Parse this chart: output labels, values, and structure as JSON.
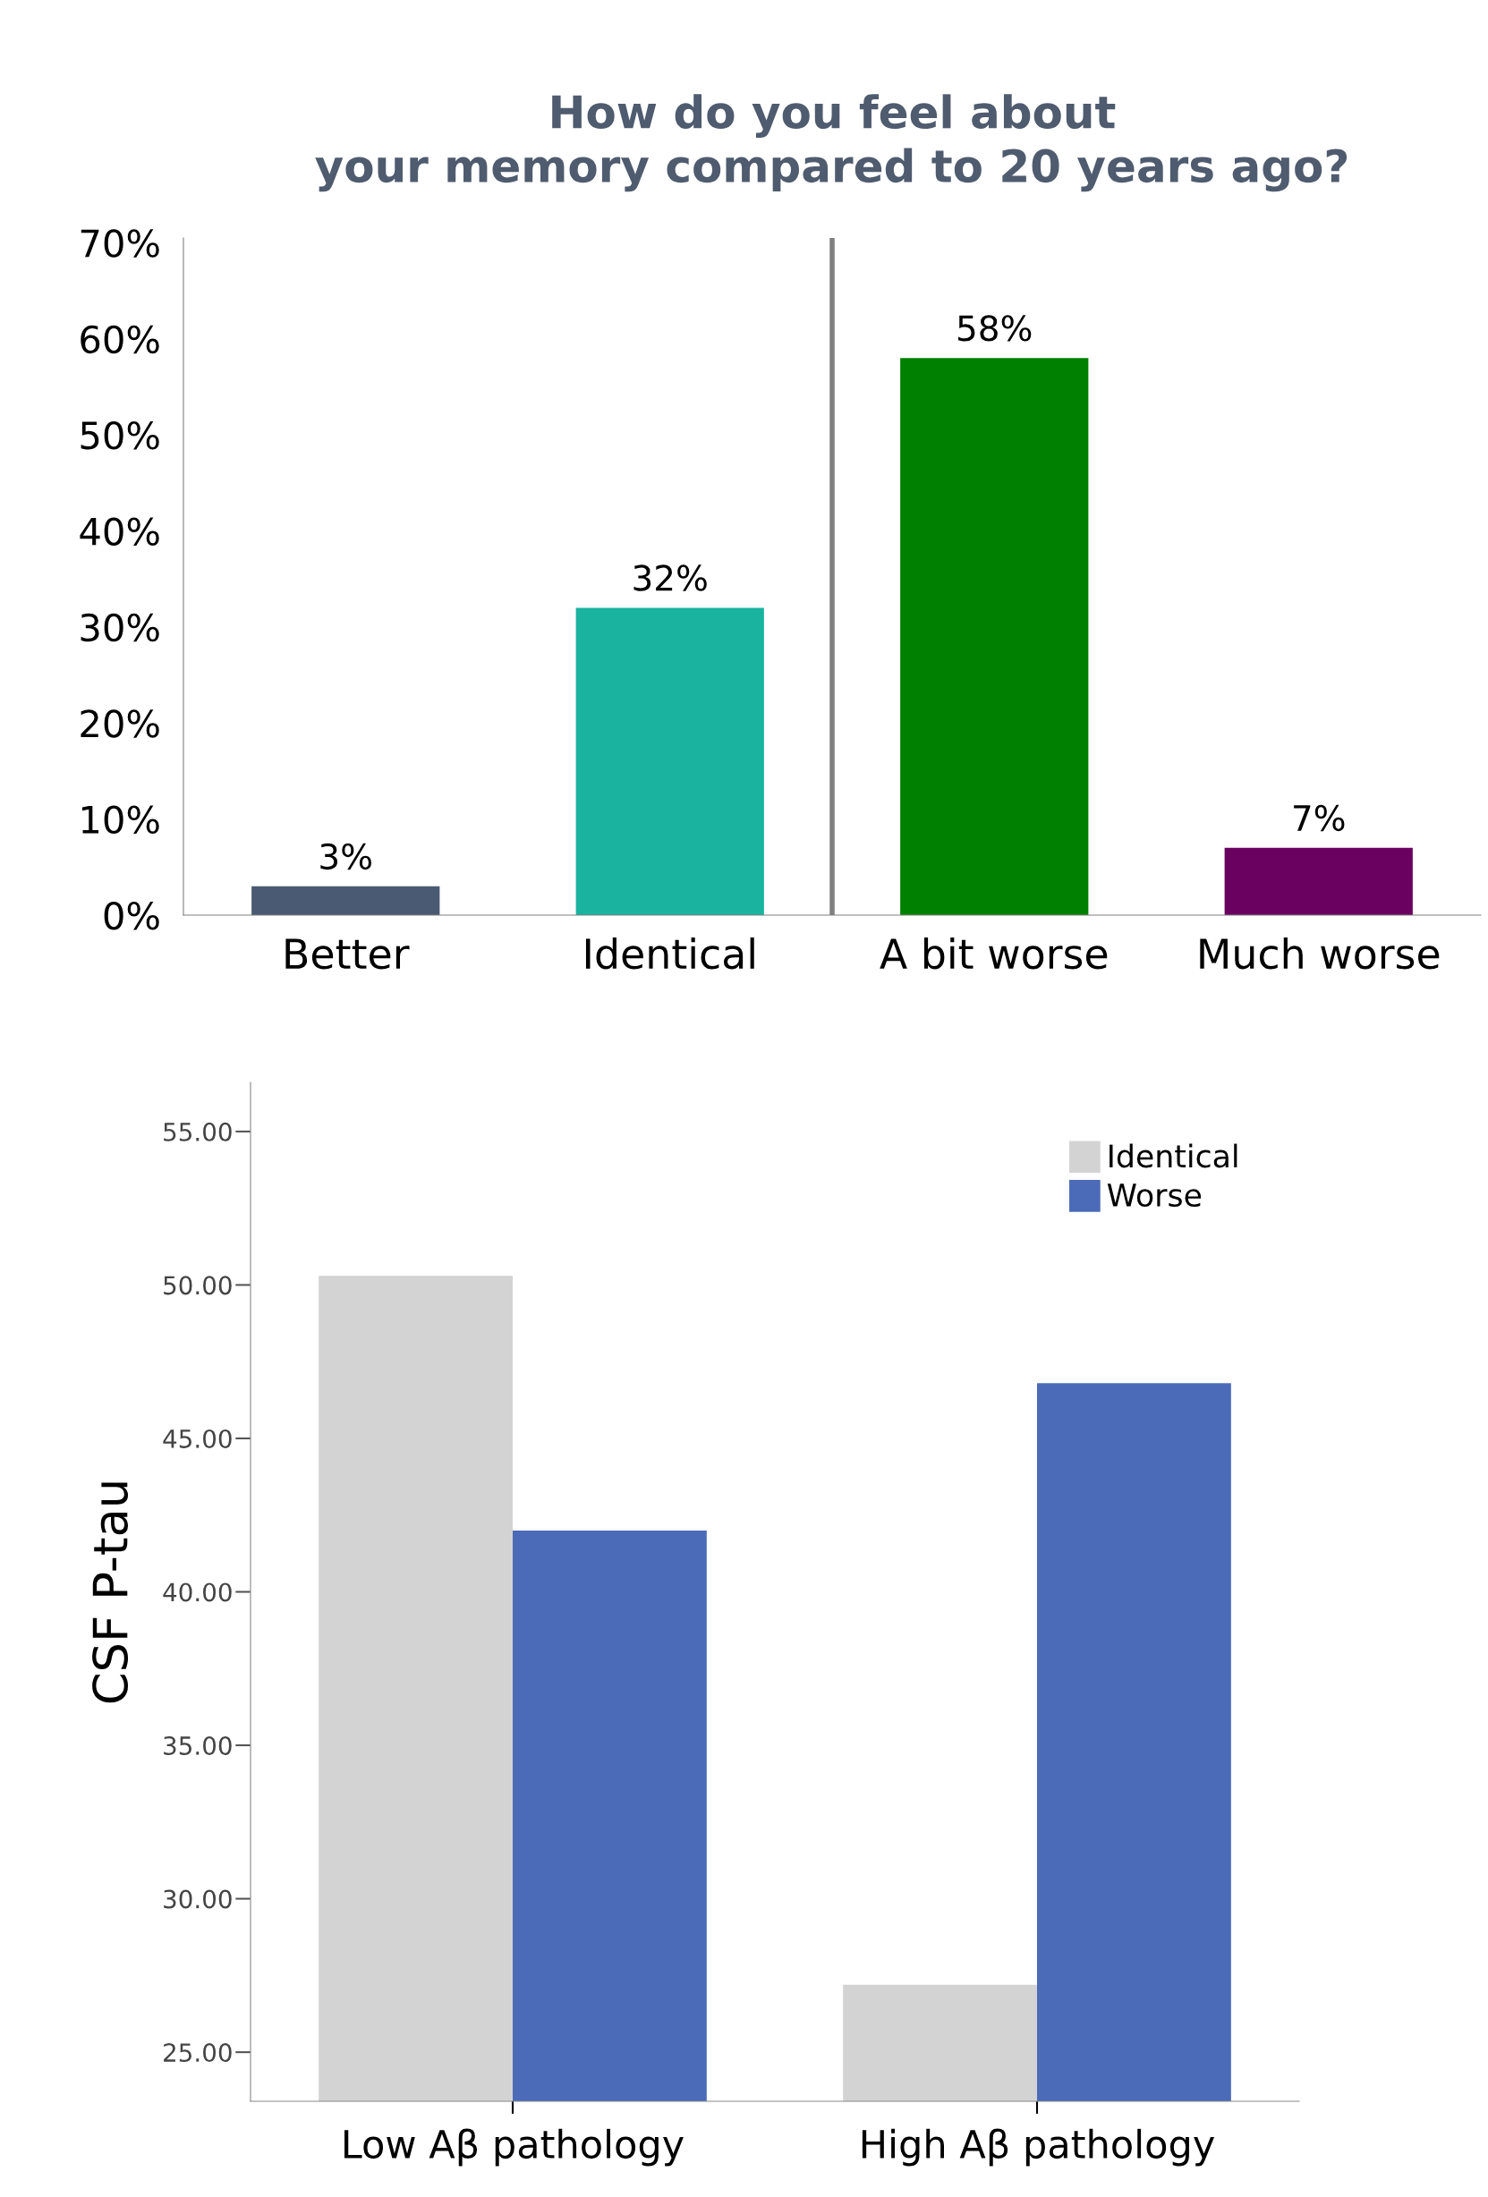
{
  "chart_data": [
    {
      "type": "bar",
      "title": "How do you feel about\nyour memory compared to 20 years ago?",
      "categories": [
        "Better",
        "Identical",
        "A bit worse",
        "Much worse"
      ],
      "values": [
        3,
        32,
        58,
        7
      ],
      "colors": [
        "#4a5a72",
        "#1ab3a0",
        "#008000",
        "#6a0060"
      ],
      "value_labels": [
        "3%",
        "32%",
        "58%",
        "7%"
      ],
      "ylim": [
        0,
        70.5
      ],
      "yticks": [
        {
          "value": 0,
          "label": "0%"
        },
        {
          "value": 10,
          "label": "10%"
        },
        {
          "value": 20,
          "label": "20%"
        },
        {
          "value": 30,
          "label": "30%"
        },
        {
          "value": 40,
          "label": "40%"
        },
        {
          "value": 50,
          "label": "50%"
        },
        {
          "value": 60,
          "label": "60%"
        },
        {
          "value": 70,
          "label": "70%"
        }
      ]
    },
    {
      "type": "bar",
      "ylabel": "CSF P-tau",
      "categories": [
        "Low Aβ pathology",
        "High Aβ pathology"
      ],
      "series": [
        {
          "name": "Identical",
          "color": "#d3d3d3",
          "values": [
            50.3,
            27.2
          ]
        },
        {
          "name": "Worse",
          "color": "#4b6bb8",
          "values": [
            42.0,
            46.8
          ]
        }
      ],
      "ylim": [
        23.4,
        56.6
      ],
      "yticks": [
        {
          "value": 25,
          "label": "25.00"
        },
        {
          "value": 30,
          "label": "30.00"
        },
        {
          "value": 35,
          "label": "35.00"
        },
        {
          "value": 40,
          "label": "40.00"
        },
        {
          "value": 45,
          "label": "45.00"
        },
        {
          "value": 50,
          "label": "50.00"
        },
        {
          "value": 55,
          "label": "55.00"
        }
      ],
      "legend": "top right"
    }
  ]
}
